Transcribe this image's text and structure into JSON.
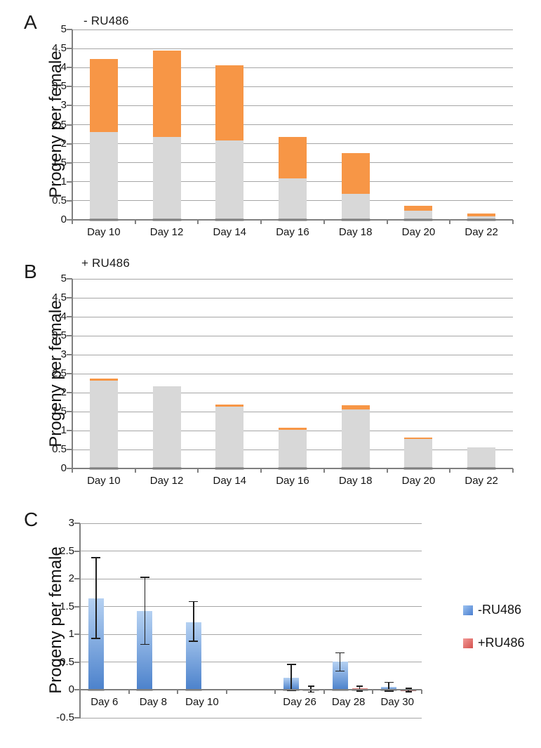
{
  "figure_caption_letters": [
    "A",
    "B",
    "C"
  ],
  "legend": {
    "minus_label": "-RU486",
    "plus_label": "+RU486",
    "minus_color": "#4a7fd0",
    "plus_color": "#d4524e"
  },
  "colors": {
    "gray_bar": "#d8d8d8",
    "orange_bar": "#f79646",
    "blue_bar_top": "#b5d1f2",
    "blue_bar_bottom": "#4c82cc",
    "red_bar_top": "#f0918e",
    "red_bar_bottom": "#cd5450",
    "gridline": "#a6a6a6",
    "axis": "#808080"
  },
  "chart_data": [
    {
      "id": "A",
      "panel_label": "A",
      "type": "bar",
      "subtype": "stacked",
      "title": "- RU486",
      "ylabel": "Progeny per female",
      "ylim": [
        0,
        5
      ],
      "ystep": 0.5,
      "grid": true,
      "legend_position": "none",
      "yticks": [
        "0",
        "0.5",
        "1",
        "1.5",
        "2",
        "2.5",
        "3",
        "3.5",
        "4",
        "4.5",
        "5"
      ],
      "categories": [
        "Day 10",
        "Day 12",
        "Day 14",
        "Day 16",
        "Day 18",
        "Day 20",
        "Day 22"
      ],
      "series": [
        {
          "name": "gray-segment",
          "color": "#d8d8d8",
          "values": [
            2.3,
            2.18,
            2.08,
            1.09,
            0.69,
            0.24,
            0.09
          ]
        },
        {
          "name": "orange-segment",
          "color": "#f79646",
          "values": [
            1.92,
            2.27,
            1.98,
            1.09,
            1.06,
            0.13,
            0.08
          ]
        }
      ],
      "stacked_totals": [
        4.22,
        4.45,
        4.06,
        2.18,
        1.75,
        0.37,
        0.17
      ]
    },
    {
      "id": "B",
      "panel_label": "B",
      "type": "bar",
      "subtype": "stacked",
      "title": "+ RU486",
      "ylabel": "Progeny per female",
      "ylim": [
        0,
        5
      ],
      "ystep": 0.5,
      "grid": true,
      "legend_position": "none",
      "yticks": [
        "0",
        "0.5",
        "1",
        "1.5",
        "2",
        "2.5",
        "3",
        "3.5",
        "4",
        "4.5",
        "5"
      ],
      "categories": [
        "Day 10",
        "Day 12",
        "Day 14",
        "Day 16",
        "Day 18",
        "Day 20",
        "Day 22"
      ],
      "series": [
        {
          "name": "gray-segment",
          "color": "#d8d8d8",
          "values": [
            2.31,
            2.16,
            1.63,
            1.01,
            1.55,
            0.77,
            0.56
          ]
        },
        {
          "name": "orange-segment",
          "color": "#f79646",
          "values": [
            0.06,
            0,
            0.05,
            0.06,
            0.11,
            0.05,
            0
          ]
        }
      ],
      "stacked_totals": [
        2.37,
        2.16,
        1.68,
        1.07,
        1.66,
        0.82,
        0.56
      ]
    },
    {
      "id": "C",
      "panel_label": "C",
      "type": "bar",
      "subtype": "grouped",
      "title": "",
      "ylabel": "Progeny per female",
      "ylim": [
        -0.5,
        3
      ],
      "ystep": 0.5,
      "grid": true,
      "legend_position": "right",
      "yticks": [
        "-0.5",
        "0",
        "0.5",
        "1",
        "1.5",
        "2",
        "2.5",
        "3"
      ],
      "categories": [
        "Day 6",
        "Day 8",
        "Day 10",
        "",
        "Day 26",
        "Day 28",
        "Day 30"
      ],
      "series": [
        {
          "name": "-RU486",
          "color_top": "#b5d1f2",
          "color_bottom": "#4c82cc",
          "values": [
            1.65,
            1.42,
            1.22,
            null,
            0.22,
            0.51,
            0.06
          ],
          "error_low": [
            0.93,
            0.82,
            0.88,
            null,
            -0.01,
            0.34,
            -0.02
          ],
          "error_high": [
            2.38,
            2.03,
            1.59,
            null,
            0.46,
            0.67,
            0.14
          ]
        },
        {
          "name": "+RU486",
          "color_top": "#f0918e",
          "color_bottom": "#cd5450",
          "values": [
            null,
            null,
            null,
            null,
            0.015,
            0.025,
            0.005
          ],
          "error_low": [
            null,
            null,
            null,
            null,
            -0.04,
            -0.02,
            -0.03
          ],
          "error_high": [
            null,
            null,
            null,
            null,
            0.07,
            0.07,
            0.03
          ]
        }
      ]
    }
  ]
}
